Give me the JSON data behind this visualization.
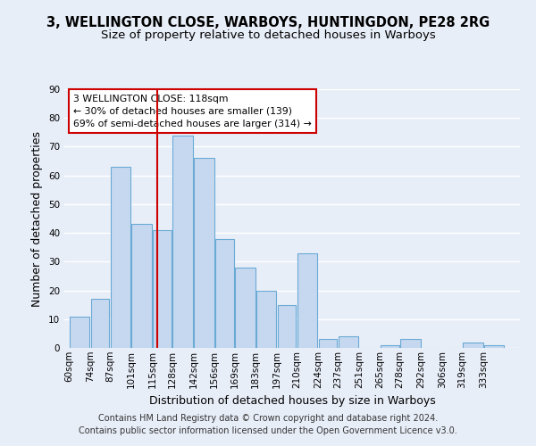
{
  "title1": "3, WELLINGTON CLOSE, WARBOYS, HUNTINGDON, PE28 2RG",
  "title2": "Size of property relative to detached houses in Warboys",
  "xlabel": "Distribution of detached houses by size in Warboys",
  "ylabel": "Number of detached properties",
  "bar_labels": [
    "60sqm",
    "74sqm",
    "87sqm",
    "101sqm",
    "115sqm",
    "128sqm",
    "142sqm",
    "156sqm",
    "169sqm",
    "183sqm",
    "197sqm",
    "210sqm",
    "224sqm",
    "237sqm",
    "251sqm",
    "265sqm",
    "278sqm",
    "292sqm",
    "306sqm",
    "319sqm",
    "333sqm"
  ],
  "bar_values": [
    11,
    17,
    63,
    43,
    41,
    74,
    66,
    38,
    28,
    20,
    15,
    33,
    3,
    4,
    0,
    1,
    3,
    0,
    0,
    2,
    1
  ],
  "bar_color": "#c5d8f0",
  "bar_edge_color": "#6aaad4",
  "bin_edges": [
    60,
    74,
    87,
    101,
    115,
    128,
    142,
    156,
    169,
    183,
    197,
    210,
    224,
    237,
    251,
    265,
    278,
    292,
    306,
    319,
    333,
    347
  ],
  "annotation_box_text": "3 WELLINGTON CLOSE: 118sqm\n← 30% of detached houses are smaller (139)\n69% of semi-detached houses are larger (314) →",
  "annotation_box_color": "#ffffff",
  "annotation_box_edge_color": "#cc0000",
  "vline_color": "#cc0000",
  "vline_x": 118,
  "ylim": [
    0,
    90
  ],
  "yticks": [
    0,
    10,
    20,
    30,
    40,
    50,
    60,
    70,
    80,
    90
  ],
  "background_color": "#e8eef8",
  "grid_color": "#ffffff",
  "title1_fontsize": 10.5,
  "title2_fontsize": 9.5,
  "axis_label_fontsize": 9,
  "tick_fontsize": 7.5,
  "footer_fontsize": 7,
  "footer_line1": "Contains HM Land Registry data © Crown copyright and database right 2024.",
  "footer_line2": "Contains public sector information licensed under the Open Government Licence v3.0."
}
